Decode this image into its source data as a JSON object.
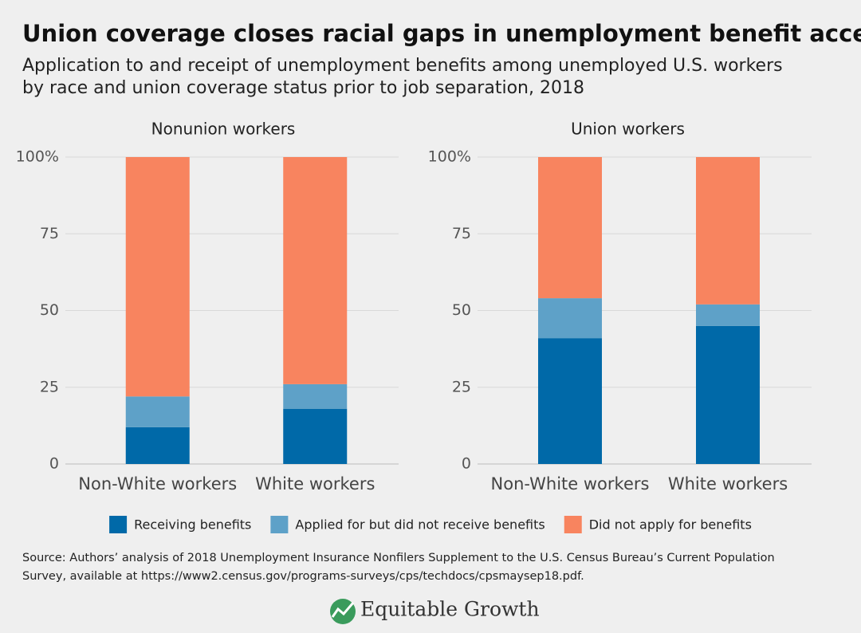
{
  "title": "Union coverage closes racial gaps in unemployment benefit access",
  "subtitle": [
    "Application to and receipt of unemployment benefits among unemployed U.S. workers",
    "by race and union coverage status prior to job separation, 2018"
  ],
  "chart_data": {
    "type": "stacked_bar",
    "ylim": [
      0,
      100
    ],
    "yticks": [
      0,
      25,
      50,
      75,
      {
        "value": 100,
        "label": "100%"
      }
    ],
    "grid": true,
    "series": [
      {
        "name": "Receiving benefits",
        "color": "#0069a8"
      },
      {
        "name": "Applied for but did not receive benefits",
        "color": "#5ea1c8"
      },
      {
        "name": "Did not apply for benefits",
        "color": "#f8845f"
      }
    ],
    "panels": [
      {
        "title": "Nonunion workers",
        "categories": [
          "Non-White workers",
          "White workers"
        ],
        "series": [
          {
            "values": [
              12,
              18
            ]
          },
          {
            "values": [
              10,
              8
            ]
          },
          {
            "values": [
              78,
              74
            ]
          }
        ]
      },
      {
        "title": "Union workers",
        "categories": [
          "Non-White workers",
          "White workers"
        ],
        "series": [
          {
            "values": [
              41,
              45
            ]
          },
          {
            "values": [
              13,
              7
            ]
          },
          {
            "values": [
              46,
              48
            ]
          }
        ]
      }
    ]
  },
  "source": [
    "Source: Authors’ analysis of 2018 Unemployment Insurance Nonfilers Supplement to the U.S. Census Bureau’s Current Population",
    "Survey, available at https://www2.census.gov/programs-surveys/cps/techdocs/cpsmaysep18.pdf."
  ],
  "logo": "Equitable Growth"
}
